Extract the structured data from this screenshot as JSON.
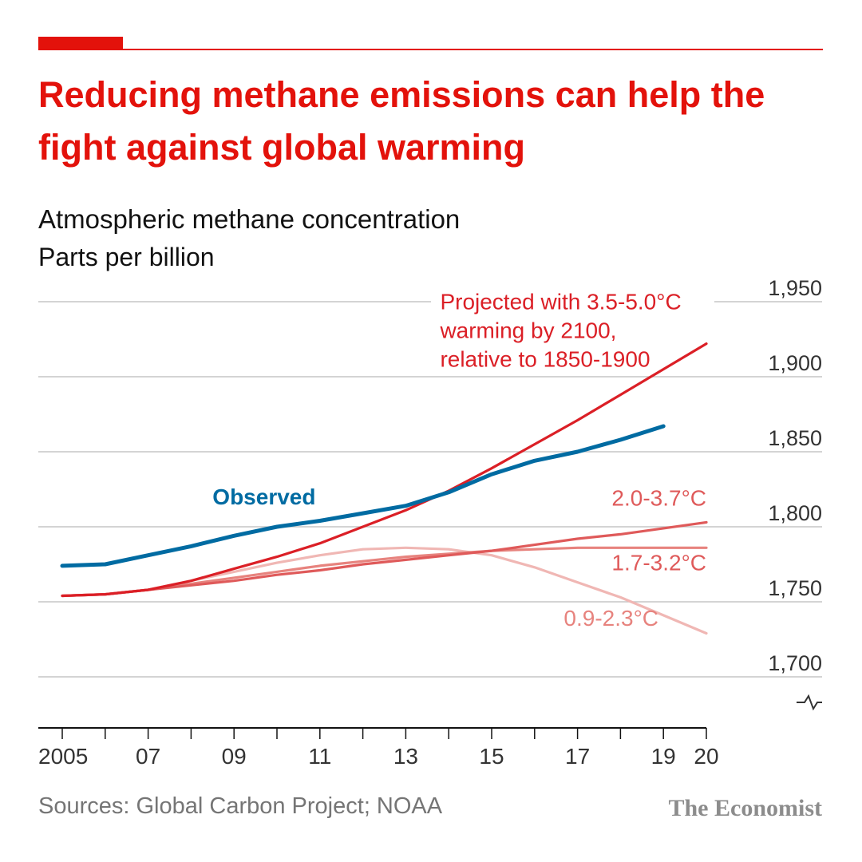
{
  "header": {
    "title": "Reducing methane emissions can help the fight against global warming"
  },
  "footer": {
    "source": "Sources: Global Carbon Project; NOAA",
    "brand": "The Economist"
  },
  "colors": {
    "accent": "#e3120b",
    "observed": "#006ba2",
    "scenario_high": "#db1f26",
    "scenario_mid": "#df5a5a",
    "scenario_low": "#e7837e",
    "scenario_lowest": "#f0b7b4"
  },
  "chart_data": {
    "type": "line",
    "title": "Atmospheric methane concentration",
    "subtitle": "Parts per billion",
    "xlim": [
      2005,
      2020
    ],
    "ylim": [
      1680,
      1950
    ],
    "y_axis_break": true,
    "y_axis_position": "right",
    "grid": true,
    "x_ticks": [
      {
        "value": 2005,
        "label": "2005"
      },
      {
        "value": 2007,
        "label": "07"
      },
      {
        "value": 2009,
        "label": "09"
      },
      {
        "value": 2011,
        "label": "11"
      },
      {
        "value": 2013,
        "label": "13"
      },
      {
        "value": 2015,
        "label": "15"
      },
      {
        "value": 2017,
        "label": "17"
      },
      {
        "value": 2019,
        "label": "19"
      },
      {
        "value": 2020,
        "label": "20"
      }
    ],
    "y_ticks": [
      {
        "value": 1700,
        "label": "1,700"
      },
      {
        "value": 1750,
        "label": "1,750"
      },
      {
        "value": 1800,
        "label": "1,800"
      },
      {
        "value": 1850,
        "label": "1,850"
      },
      {
        "value": 1900,
        "label": "1,900"
      },
      {
        "value": 1950,
        "label": "1,950"
      }
    ],
    "series": [
      {
        "name": "0.9-2.3°C",
        "color": "#f0b7b4",
        "x": [
          2005,
          2006,
          2007,
          2008,
          2009,
          2010,
          2011,
          2012,
          2013,
          2014,
          2015,
          2016,
          2017,
          2018,
          2019,
          2020
        ],
        "y": [
          1754,
          1755,
          1758,
          1764,
          1770,
          1776,
          1781,
          1785,
          1786,
          1785,
          1781,
          1773,
          1763,
          1753,
          1741,
          1729
        ]
      },
      {
        "name": "1.7-3.2°C",
        "color": "#e7837e",
        "x": [
          2005,
          2006,
          2007,
          2008,
          2009,
          2010,
          2011,
          2012,
          2013,
          2014,
          2015,
          2016,
          2017,
          2018,
          2019,
          2020
        ],
        "y": [
          1754,
          1755,
          1758,
          1762,
          1766,
          1770,
          1774,
          1777,
          1780,
          1782,
          1784,
          1785,
          1786,
          1786,
          1786,
          1786
        ]
      },
      {
        "name": "2.0-3.7°C",
        "color": "#df5a5a",
        "x": [
          2005,
          2006,
          2007,
          2008,
          2009,
          2010,
          2011,
          2012,
          2013,
          2014,
          2015,
          2016,
          2017,
          2018,
          2019,
          2020
        ],
        "y": [
          1754,
          1755,
          1758,
          1761,
          1764,
          1768,
          1771,
          1775,
          1778,
          1781,
          1784,
          1788,
          1792,
          1795,
          1799,
          1803
        ]
      },
      {
        "name": "Projected with 3.5-5.0°C warming by 2100, relative to 1850-1900",
        "color": "#db1f26",
        "x": [
          2005,
          2006,
          2007,
          2008,
          2009,
          2010,
          2011,
          2012,
          2013,
          2014,
          2015,
          2016,
          2017,
          2018,
          2019,
          2020
        ],
        "y": [
          1754,
          1755,
          1758,
          1764,
          1772,
          1780,
          1789,
          1800,
          1811,
          1824,
          1839,
          1855,
          1871,
          1888,
          1905,
          1922
        ]
      },
      {
        "name": "Observed",
        "color": "#006ba2",
        "x": [
          2005,
          2006,
          2007,
          2008,
          2009,
          2010,
          2011,
          2012,
          2013,
          2014,
          2015,
          2016,
          2017,
          2018,
          2019
        ],
        "y": [
          1774,
          1775,
          1781,
          1787,
          1794,
          1800,
          1804,
          1809,
          1814,
          1823,
          1835,
          1844,
          1850,
          1858,
          1867
        ]
      }
    ],
    "annotations": [
      {
        "series": "Observed",
        "lines": [
          "Observed"
        ],
        "x": 2008.5,
        "y": 1815,
        "color": "#006ba2",
        "bold": true
      },
      {
        "series": "3.5-5.0",
        "lines": [
          "Projected with 3.5-5.0°C",
          "warming by 2100,",
          "relative to 1850-1900"
        ],
        "x": 2013.8,
        "y": 1945,
        "color": "#db1f26"
      },
      {
        "series": "2.0-3.7",
        "lines": [
          "2.0-3.7°C"
        ],
        "x": 2018.1,
        "y": 1814,
        "color": "#df5a5a"
      },
      {
        "series": "1.7-3.2",
        "lines": [
          "1.7-3.2°C"
        ],
        "x": 2018.0,
        "y": 1771,
        "color": "#df5a5a"
      },
      {
        "series": "0.9-2.3",
        "lines": [
          "0.9-2.3°C"
        ],
        "x": 2016.8,
        "y": 1734,
        "color": "#e7837e"
      }
    ]
  }
}
